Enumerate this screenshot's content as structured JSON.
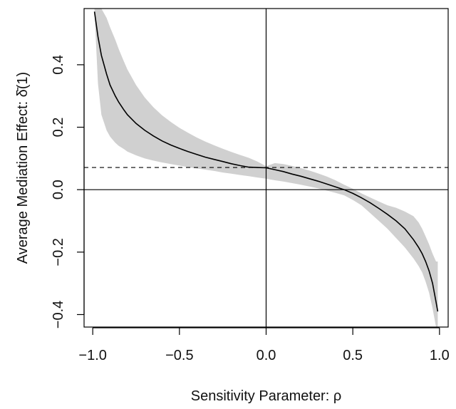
{
  "chart_data": {
    "type": "line",
    "title": "",
    "xlabel": "Sensitivity Parameter: ρ",
    "ylabel": "Average Mediation Effect: δ̄(1)",
    "xlim": [
      -1.05,
      1.05
    ],
    "ylim": [
      -0.44,
      0.58
    ],
    "x_ticks": [
      -1.0,
      -0.5,
      0.0,
      0.5,
      1.0
    ],
    "x_tick_labels": [
      "−1.0",
      "−0.5",
      "0.0",
      "0.5",
      "1.0"
    ],
    "y_ticks": [
      -0.4,
      -0.2,
      0.0,
      0.2,
      0.4
    ],
    "y_tick_labels": [
      "−0.4",
      "−0.2",
      "0.0",
      "0.2",
      "0.4"
    ],
    "grid": false,
    "legend": "none",
    "colors": {
      "line": "#000000",
      "band": "#d0d0d0",
      "reference": "#000000"
    },
    "reference_lines": {
      "horizontal": [
        0.0
      ],
      "vertical": [
        0.0
      ],
      "dashed_horizontal": 0.071
    },
    "series": [
      {
        "x": [
          -0.99,
          -0.97,
          -0.95,
          -0.92,
          -0.9,
          -0.87,
          -0.85,
          -0.82,
          -0.8,
          -0.75,
          -0.7,
          -0.65,
          -0.6,
          -0.55,
          -0.5,
          -0.45,
          -0.4,
          -0.35,
          -0.3,
          -0.25,
          -0.2,
          -0.15,
          -0.1,
          -0.05,
          0.0,
          0.05,
          0.1,
          0.15,
          0.2,
          0.25,
          0.3,
          0.35,
          0.4,
          0.45,
          0.5,
          0.55,
          0.6,
          0.65,
          0.7,
          0.75,
          0.8,
          0.85,
          0.88,
          0.9,
          0.92,
          0.94,
          0.96,
          0.98,
          0.99
        ],
        "y": [
          0.57,
          0.49,
          0.43,
          0.37,
          0.335,
          0.3,
          0.28,
          0.255,
          0.24,
          0.212,
          0.19,
          0.172,
          0.156,
          0.143,
          0.132,
          0.122,
          0.113,
          0.104,
          0.097,
          0.09,
          0.083,
          0.077,
          0.072,
          0.071,
          0.07,
          0.064,
          0.058,
          0.05,
          0.043,
          0.035,
          0.027,
          0.018,
          0.009,
          0.0,
          -0.012,
          -0.026,
          -0.042,
          -0.06,
          -0.079,
          -0.1,
          -0.125,
          -0.16,
          -0.185,
          -0.205,
          -0.23,
          -0.26,
          -0.3,
          -0.36,
          -0.39
        ],
        "lower": [
          0.57,
          0.34,
          0.24,
          0.19,
          0.17,
          0.15,
          0.14,
          0.13,
          0.122,
          0.11,
          0.1,
          0.093,
          0.087,
          0.082,
          0.077,
          0.072,
          0.068,
          0.064,
          0.06,
          0.055,
          0.051,
          0.047,
          0.043,
          0.039,
          0.035,
          0.03,
          0.026,
          0.021,
          0.016,
          0.01,
          0.004,
          -0.003,
          -0.01,
          -0.018,
          -0.033,
          -0.05,
          -0.075,
          -0.1,
          -0.125,
          -0.155,
          -0.185,
          -0.22,
          -0.245,
          -0.265,
          -0.295,
          -0.33,
          -0.38,
          -0.44,
          -0.44
        ],
        "upper": [
          0.58,
          0.58,
          0.58,
          0.55,
          0.52,
          0.48,
          0.45,
          0.41,
          0.385,
          0.335,
          0.295,
          0.264,
          0.238,
          0.217,
          0.198,
          0.182,
          0.167,
          0.154,
          0.142,
          0.131,
          0.121,
          0.111,
          0.102,
          0.09,
          0.075,
          0.085,
          0.082,
          0.076,
          0.069,
          0.061,
          0.052,
          0.042,
          0.03,
          0.016,
          0.003,
          -0.012,
          -0.025,
          -0.038,
          -0.05,
          -0.058,
          -0.07,
          -0.085,
          -0.105,
          -0.125,
          -0.15,
          -0.175,
          -0.205,
          -0.23,
          -0.23
        ]
      }
    ]
  }
}
